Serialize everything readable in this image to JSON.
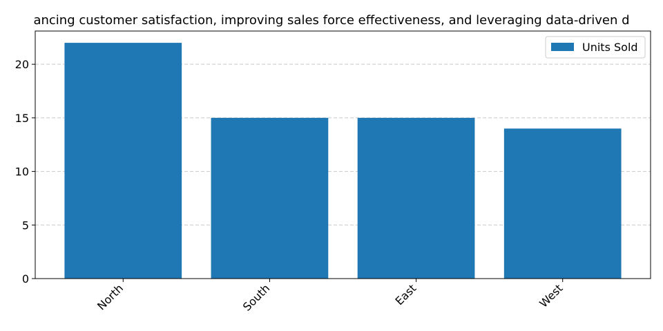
{
  "chart_data": {
    "type": "bar",
    "title": "ancing customer satisfaction, improving sales force effectiveness, and leveraging data-driven d",
    "xlabel": "",
    "ylabel": "",
    "categories": [
      "North",
      "South",
      "East",
      "West"
    ],
    "series": [
      {
        "name": "Units Sold",
        "values": [
          22,
          15,
          15,
          14
        ],
        "color": "#1f77b4"
      }
    ],
    "ylim": [
      0,
      23.1
    ],
    "yticks": [
      0,
      5,
      10,
      15,
      20
    ],
    "grid": "y-dashed",
    "legend_position": "top-right"
  }
}
